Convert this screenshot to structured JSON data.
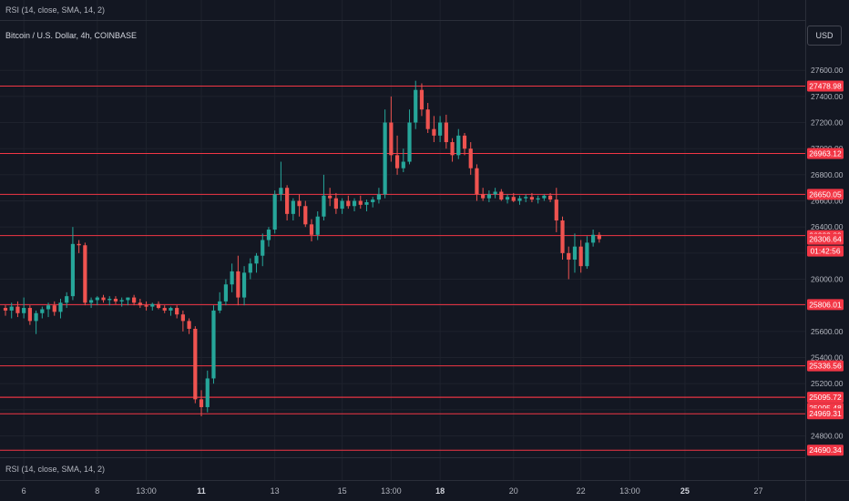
{
  "header": {
    "indicator_label": "RSI (14, close, SMA, 14, 2)",
    "symbol_title": "Bitcoin / U.S. Dollar, 4h, COINBASE",
    "currency": "USD"
  },
  "colors": {
    "background": "#131722",
    "grid": "#1e222d",
    "up": "#26a69a",
    "down": "#ef5350",
    "level_line": "#f23645",
    "axis_text": "#b2b5be"
  },
  "chart_data": {
    "type": "candlestick",
    "title": "Bitcoin / U.S. Dollar, 4h, COINBASE",
    "ylim": [
      24650,
      27720
    ],
    "y_ticks": [
      27600,
      27400,
      27200,
      27000,
      26800,
      26600,
      26400,
      26200,
      26000,
      25800,
      25600,
      25400,
      25200,
      25000,
      24800
    ],
    "x_ticks": [
      {
        "label": "6",
        "i": 3
      },
      {
        "label": "8",
        "i": 15
      },
      {
        "label": "13:00",
        "i": 23
      },
      {
        "label": "11",
        "i": 32
      },
      {
        "label": "13",
        "i": 44
      },
      {
        "label": "15",
        "i": 55
      },
      {
        "label": "13:00",
        "i": 63
      },
      {
        "label": "18",
        "i": 71
      },
      {
        "label": "20",
        "i": 83
      },
      {
        "label": "22",
        "i": 94
      },
      {
        "label": "13:00",
        "i": 102
      },
      {
        "label": "25",
        "i": 111
      },
      {
        "label": "27",
        "i": 123
      }
    ],
    "levels": [
      27478.98,
      26963.12,
      26650.05,
      26333.89,
      25806.01,
      25336.56,
      25095.72,
      25095.48,
      24969.31,
      24690.34
    ],
    "price_labels": [
      {
        "text": "27478.98",
        "value": 27478.98
      },
      {
        "text": "26963.12",
        "value": 26963.12
      },
      {
        "text": "26650.05",
        "value": 26650.05
      },
      {
        "text": "26333.89",
        "value": 26333.89
      },
      {
        "text": "26306.64",
        "value": 26306.64
      },
      {
        "text": "01:42:56",
        "value": 26306.64,
        "below": true
      },
      {
        "text": "25806.01",
        "value": 25806.01
      },
      {
        "text": "25336.56",
        "value": 25336.56
      },
      {
        "text": "25095.72",
        "value": 25095.72
      },
      {
        "text": "25095.48",
        "value": 25095.48,
        "stack": 1
      },
      {
        "text": "24969.31",
        "value": 24969.31
      },
      {
        "text": "24690.34",
        "value": 24690.34
      }
    ],
    "candles": [
      [
        25780,
        25800,
        25720,
        25760
      ],
      [
        25760,
        25820,
        25700,
        25790
      ],
      [
        25790,
        25830,
        25710,
        25740
      ],
      [
        25740,
        25860,
        25700,
        25780
      ],
      [
        25780,
        25800,
        25650,
        25680
      ],
      [
        25680,
        25760,
        25580,
        25740
      ],
      [
        25740,
        25790,
        25700,
        25770
      ],
      [
        25770,
        25820,
        25710,
        25800
      ],
      [
        25800,
        25830,
        25720,
        25750
      ],
      [
        25750,
        25850,
        25700,
        25820
      ],
      [
        25820,
        25900,
        25780,
        25870
      ],
      [
        25870,
        26400,
        25840,
        26270
      ],
      [
        26270,
        26300,
        26200,
        26260
      ],
      [
        26260,
        26280,
        25800,
        25820
      ],
      [
        25820,
        25860,
        25780,
        25840
      ],
      [
        25840,
        25870,
        25800,
        25860
      ],
      [
        25860,
        25880,
        25820,
        25840
      ],
      [
        25840,
        25870,
        25800,
        25850
      ],
      [
        25850,
        25870,
        25810,
        25830
      ],
      [
        25830,
        25860,
        25790,
        25840
      ],
      [
        25840,
        25860,
        25800,
        25860
      ],
      [
        25860,
        25880,
        25800,
        25820
      ],
      [
        25820,
        25850,
        25780,
        25800
      ],
      [
        25800,
        25830,
        25760,
        25790
      ],
      [
        25790,
        25820,
        25760,
        25810
      ],
      [
        25810,
        25830,
        25770,
        25780
      ],
      [
        25780,
        25800,
        25740,
        25760
      ],
      [
        25760,
        25790,
        25720,
        25780
      ],
      [
        25780,
        25800,
        25700,
        25730
      ],
      [
        25730,
        25760,
        25600,
        25680
      ],
      [
        25680,
        25700,
        25580,
        25620
      ],
      [
        25620,
        25640,
        25050,
        25080
      ],
      [
        25080,
        25150,
        24950,
        25020
      ],
      [
        25020,
        25300,
        24980,
        25240
      ],
      [
        25240,
        25800,
        25200,
        25760
      ],
      [
        25760,
        25900,
        25740,
        25830
      ],
      [
        25830,
        26000,
        25800,
        25960
      ],
      [
        25960,
        26120,
        25900,
        26060
      ],
      [
        26060,
        26180,
        25800,
        25860
      ],
      [
        25860,
        26100,
        25800,
        26050
      ],
      [
        26050,
        26160,
        26000,
        26120
      ],
      [
        26120,
        26200,
        26050,
        26180
      ],
      [
        26180,
        26350,
        26100,
        26300
      ],
      [
        26300,
        26400,
        26250,
        26380
      ],
      [
        26380,
        26680,
        26350,
        26650
      ],
      [
        26650,
        26900,
        26600,
        26700
      ],
      [
        26700,
        26720,
        26450,
        26500
      ],
      [
        26500,
        26620,
        26450,
        26600
      ],
      [
        26600,
        26650,
        26480,
        26560
      ],
      [
        26560,
        26600,
        26400,
        26420
      ],
      [
        26420,
        26460,
        26290,
        26340
      ],
      [
        26340,
        26520,
        26300,
        26480
      ],
      [
        26480,
        26800,
        26450,
        26640
      ],
      [
        26640,
        26700,
        26560,
        26620
      ],
      [
        26620,
        26660,
        26500,
        26540
      ],
      [
        26540,
        26620,
        26500,
        26600
      ],
      [
        26600,
        26640,
        26540,
        26560
      ],
      [
        26560,
        26620,
        26520,
        26600
      ],
      [
        26600,
        26640,
        26540,
        26570
      ],
      [
        26570,
        26610,
        26520,
        26590
      ],
      [
        26590,
        26630,
        26550,
        26610
      ],
      [
        26610,
        26700,
        26580,
        26650
      ],
      [
        26650,
        27300,
        26620,
        27200
      ],
      [
        27200,
        27400,
        26900,
        26950
      ],
      [
        26950,
        27100,
        26800,
        26850
      ],
      [
        26850,
        27000,
        26820,
        26900
      ],
      [
        26900,
        27300,
        26880,
        27200
      ],
      [
        27200,
        27520,
        27150,
        27450
      ],
      [
        27450,
        27500,
        27250,
        27300
      ],
      [
        27300,
        27350,
        27120,
        27150
      ],
      [
        27150,
        27250,
        27050,
        27100
      ],
      [
        27100,
        27250,
        27050,
        27200
      ],
      [
        27200,
        27260,
        27000,
        27050
      ],
      [
        27050,
        27080,
        26900,
        26950
      ],
      [
        26950,
        27150,
        26920,
        27100
      ],
      [
        27100,
        27120,
        26950,
        27000
      ],
      [
        27000,
        27050,
        26800,
        26850
      ],
      [
        26850,
        26880,
        26600,
        26650
      ],
      [
        26650,
        26700,
        26600,
        26620
      ],
      [
        26620,
        26680,
        26590,
        26650
      ],
      [
        26650,
        26700,
        26620,
        26670
      ],
      [
        26670,
        26690,
        26600,
        26610
      ],
      [
        26610,
        26650,
        26580,
        26630
      ],
      [
        26630,
        26660,
        26590,
        26600
      ],
      [
        26600,
        26640,
        26570,
        26620
      ],
      [
        26620,
        26650,
        26590,
        26630
      ],
      [
        26630,
        26660,
        26590,
        26610
      ],
      [
        26610,
        26640,
        26580,
        26620
      ],
      [
        26620,
        26650,
        26600,
        26640
      ],
      [
        26640,
        26660,
        26590,
        26610
      ],
      [
        26610,
        26700,
        26360,
        26450
      ],
      [
        26450,
        26480,
        26150,
        26200
      ],
      [
        26200,
        26250,
        26000,
        26150
      ],
      [
        26150,
        26350,
        26050,
        26250
      ],
      [
        26250,
        26300,
        26050,
        26100
      ],
      [
        26100,
        26330,
        26080,
        26280
      ],
      [
        26280,
        26380,
        26250,
        26340
      ],
      [
        26340,
        26360,
        26280,
        26307
      ]
    ]
  }
}
